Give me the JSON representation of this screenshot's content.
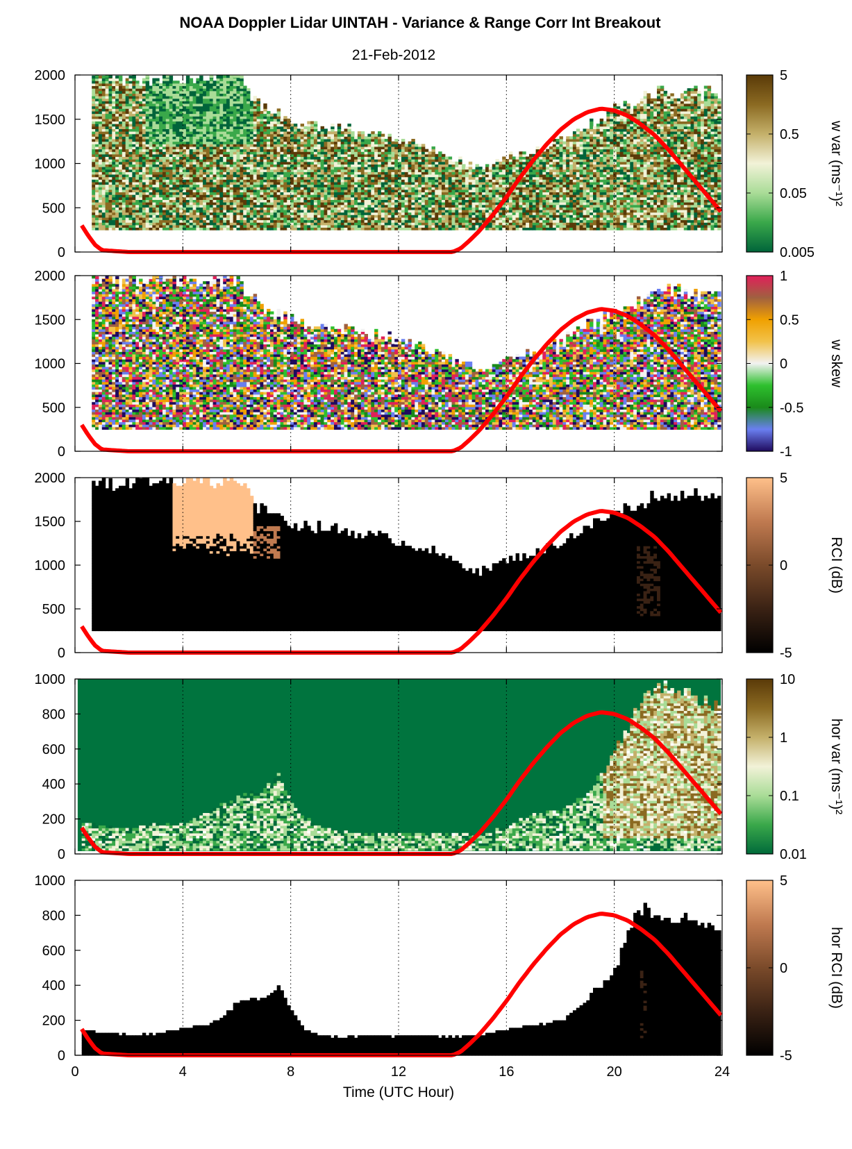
{
  "figure": {
    "title": "NOAA Doppler Lidar UINTAH - Variance & Range Corr Int Breakout",
    "subtitle": "21-Feb-2012"
  },
  "chart_data": [
    {
      "type": "heatmap",
      "name": "w-variance",
      "xlabel": "",
      "ylabel": "",
      "xlim": [
        0,
        24
      ],
      "ylim": [
        0,
        2000
      ],
      "xticks": [
        "0",
        "4",
        "8",
        "12",
        "16",
        "20",
        "24"
      ],
      "yticks": [
        "0",
        "500",
        "1000",
        "1500",
        "2000"
      ],
      "colorbar": {
        "label": "w var (ms⁻¹)²",
        "ticks": [
          "5",
          "0.5",
          "0.05",
          "0.005"
        ],
        "scale": "log",
        "colors": [
          "#00643a",
          "#3aa84a",
          "#a9dc97",
          "#f2f2d8",
          "#c4b06a",
          "#8b6a22",
          "#5a3a08"
        ]
      },
      "top_envelope": [
        [
          0.6,
          2000
        ],
        [
          1,
          2000
        ],
        [
          1.5,
          1950
        ],
        [
          2,
          2000
        ],
        [
          3,
          2000
        ],
        [
          4,
          2000
        ],
        [
          5,
          2000
        ],
        [
          6,
          2000
        ],
        [
          6.5,
          1750
        ],
        [
          7,
          1650
        ],
        [
          8,
          1500
        ],
        [
          9,
          1450
        ],
        [
          10,
          1400
        ],
        [
          11,
          1350
        ],
        [
          12,
          1280
        ],
        [
          13,
          1200
        ],
        [
          14,
          1050
        ],
        [
          15,
          930
        ],
        [
          16,
          1080
        ],
        [
          17,
          1150
        ],
        [
          18,
          1280
        ],
        [
          19,
          1450
        ],
        [
          20,
          1620
        ],
        [
          21,
          1750
        ],
        [
          22,
          1850
        ],
        [
          23,
          1820
        ],
        [
          24,
          1800
        ]
      ],
      "bottom_km_range": 250,
      "overlay_curve": "sunelev"
    },
    {
      "type": "heatmap",
      "name": "w-skew",
      "xlabel": "",
      "ylabel": "",
      "xlim": [
        0,
        24
      ],
      "ylim": [
        0,
        2000
      ],
      "xticks": [
        "0",
        "4",
        "8",
        "12",
        "16",
        "20",
        "24"
      ],
      "yticks": [
        "0",
        "500",
        "1000",
        "1500",
        "2000"
      ],
      "colorbar": {
        "label": "w skew",
        "ticks": [
          "1",
          "0.5",
          "0",
          "-0.5",
          "-1"
        ],
        "scale": "linear",
        "colors": [
          "#1f0a5e",
          "#6a7ff0",
          "#1a8a1a",
          "#2ec02e",
          "#f2f2f2",
          "#f2c24a",
          "#f0a000",
          "#a06040",
          "#e0205a"
        ]
      },
      "top_envelope": [
        [
          0.6,
          2000
        ],
        [
          1,
          2000
        ],
        [
          1.5,
          1950
        ],
        [
          2,
          2000
        ],
        [
          3,
          2000
        ],
        [
          4,
          2000
        ],
        [
          5,
          2000
        ],
        [
          6,
          2000
        ],
        [
          6.5,
          1750
        ],
        [
          7,
          1650
        ],
        [
          8,
          1500
        ],
        [
          9,
          1450
        ],
        [
          10,
          1400
        ],
        [
          11,
          1350
        ],
        [
          12,
          1280
        ],
        [
          13,
          1200
        ],
        [
          14,
          1050
        ],
        [
          15,
          930
        ],
        [
          16,
          1080
        ],
        [
          17,
          1150
        ],
        [
          18,
          1280
        ],
        [
          19,
          1450
        ],
        [
          20,
          1620
        ],
        [
          21,
          1750
        ],
        [
          22,
          1850
        ],
        [
          23,
          1820
        ],
        [
          24,
          1800
        ]
      ],
      "bottom_km_range": 250,
      "overlay_curve": "sunelev"
    },
    {
      "type": "heatmap",
      "name": "rci",
      "xlabel": "",
      "ylabel": "",
      "xlim": [
        0,
        24
      ],
      "ylim": [
        0,
        2000
      ],
      "xticks": [
        "0",
        "4",
        "8",
        "12",
        "16",
        "20",
        "24"
      ],
      "yticks": [
        "0",
        "500",
        "1000",
        "1500",
        "2000"
      ],
      "colorbar": {
        "label": "RCI (dB)",
        "ticks": [
          "5",
          "0",
          "-5"
        ],
        "scale": "linear",
        "colors": [
          "#000000",
          "#3a2214",
          "#7a4a2a",
          "#c07a50",
          "#ffc08a"
        ]
      },
      "top_envelope": [
        [
          0.6,
          2000
        ],
        [
          1,
          2000
        ],
        [
          1.5,
          1950
        ],
        [
          2,
          2000
        ],
        [
          3,
          2000
        ],
        [
          4,
          2000
        ],
        [
          5,
          2000
        ],
        [
          6,
          2000
        ],
        [
          6.5,
          1750
        ],
        [
          7,
          1650
        ],
        [
          8,
          1500
        ],
        [
          9,
          1450
        ],
        [
          10,
          1400
        ],
        [
          11,
          1350
        ],
        [
          12,
          1280
        ],
        [
          13,
          1200
        ],
        [
          14,
          1050
        ],
        [
          15,
          930
        ],
        [
          16,
          1080
        ],
        [
          17,
          1150
        ],
        [
          18,
          1280
        ],
        [
          19,
          1450
        ],
        [
          20,
          1620
        ],
        [
          21,
          1750
        ],
        [
          22,
          1850
        ],
        [
          23,
          1820
        ],
        [
          24,
          1800
        ]
      ],
      "bottom_km_range": 250,
      "overlay_curve": "sunelev"
    },
    {
      "type": "heatmap",
      "name": "hor-variance",
      "xlabel": "",
      "ylabel": "",
      "xlim": [
        0,
        24
      ],
      "ylim": [
        0,
        1000
      ],
      "xticks": [
        "0",
        "4",
        "8",
        "12",
        "16",
        "20",
        "24"
      ],
      "yticks": [
        "0",
        "200",
        "400",
        "600",
        "800",
        "1000"
      ],
      "colorbar": {
        "label": "hor var (ms⁻¹)²",
        "ticks": [
          "10",
          "1",
          "0.1",
          "0.01"
        ],
        "scale": "log",
        "colors": [
          "#006a3a",
          "#3aa84a",
          "#a9dc97",
          "#f2f2d8",
          "#c4b06a",
          "#8b6a22",
          "#5a3a08"
        ]
      },
      "top_envelope": [
        [
          0.2,
          180
        ],
        [
          1,
          150
        ],
        [
          2,
          140
        ],
        [
          3,
          170
        ],
        [
          4,
          160
        ],
        [
          5,
          260
        ],
        [
          6,
          320
        ],
        [
          7,
          380
        ],
        [
          7.5,
          460
        ],
        [
          8,
          270
        ],
        [
          9,
          150
        ],
        [
          10,
          120
        ],
        [
          11,
          110
        ],
        [
          12,
          120
        ],
        [
          13,
          110
        ],
        [
          14,
          120
        ],
        [
          15,
          100
        ],
        [
          16,
          160
        ],
        [
          17,
          220
        ],
        [
          18,
          250
        ],
        [
          19,
          350
        ],
        [
          20,
          600
        ],
        [
          21,
          900
        ],
        [
          22,
          1000
        ],
        [
          23,
          900
        ],
        [
          24,
          850
        ]
      ],
      "bottom_km_range": 20,
      "overlay_curve": "sunelev"
    },
    {
      "type": "heatmap",
      "name": "hor-rci",
      "xlabel": "Time (UTC Hour)",
      "ylabel": "",
      "xlim": [
        0,
        24
      ],
      "ylim": [
        0,
        1000
      ],
      "xticks": [
        "0",
        "4",
        "8",
        "12",
        "16",
        "20",
        "24"
      ],
      "yticks": [
        "0",
        "200",
        "400",
        "600",
        "800",
        "1000"
      ],
      "colorbar": {
        "label": "hor RCI (dB)",
        "ticks": [
          "5",
          "0",
          "-5"
        ],
        "scale": "linear",
        "colors": [
          "#000000",
          "#3a2214",
          "#7a4a2a",
          "#c07a50",
          "#ffc08a"
        ]
      },
      "top_envelope": [
        [
          0.2,
          140
        ],
        [
          1,
          130
        ],
        [
          2,
          110
        ],
        [
          3,
          120
        ],
        [
          4,
          150
        ],
        [
          5,
          180
        ],
        [
          6,
          300
        ],
        [
          7,
          320
        ],
        [
          7.5,
          400
        ],
        [
          8,
          250
        ],
        [
          8.5,
          140
        ],
        [
          9,
          110
        ],
        [
          10,
          100
        ],
        [
          11,
          110
        ],
        [
          12,
          105
        ],
        [
          13,
          110
        ],
        [
          14,
          100
        ],
        [
          15,
          110
        ],
        [
          16,
          150
        ],
        [
          17,
          170
        ],
        [
          18,
          190
        ],
        [
          19,
          330
        ],
        [
          20,
          500
        ],
        [
          20.5,
          750
        ],
        [
          21,
          850
        ],
        [
          22,
          800
        ],
        [
          23,
          780
        ],
        [
          24,
          720
        ]
      ],
      "bottom_km_range": 0,
      "overlay_curve": "sunelev"
    }
  ],
  "sun_curve": {
    "note_color": "#ff0000",
    "points_hours": [
      0.25,
      0.5,
      0.75,
      1.0,
      2,
      4,
      6,
      8,
      10,
      12,
      13,
      14,
      14.3,
      14.6,
      15,
      15.5,
      16,
      16.5,
      17,
      17.5,
      18,
      18.5,
      19,
      19.5,
      20,
      20.5,
      21,
      21.5,
      22,
      22.5,
      23,
      23.5,
      24
    ],
    "frac_of_yrange": [
      0.15,
      0.09,
      0.04,
      0.01,
      0.0,
      0.0,
      0.0,
      0.0,
      0.0,
      0.0,
      0.0,
      0.0,
      0.02,
      0.06,
      0.12,
      0.21,
      0.31,
      0.42,
      0.52,
      0.61,
      0.69,
      0.75,
      0.79,
      0.81,
      0.8,
      0.77,
      0.72,
      0.66,
      0.58,
      0.49,
      0.4,
      0.31,
      0.22
    ]
  }
}
